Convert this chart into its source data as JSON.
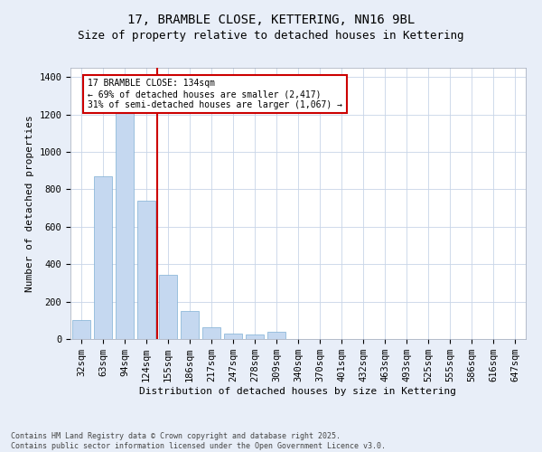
{
  "title1": "17, BRAMBLE CLOSE, KETTERING, NN16 9BL",
  "title2": "Size of property relative to detached houses in Kettering",
  "xlabel": "Distribution of detached houses by size in Kettering",
  "ylabel": "Number of detached properties",
  "categories": [
    "32sqm",
    "63sqm",
    "94sqm",
    "124sqm",
    "155sqm",
    "186sqm",
    "217sqm",
    "247sqm",
    "278sqm",
    "309sqm",
    "340sqm",
    "370sqm",
    "401sqm",
    "432sqm",
    "463sqm",
    "493sqm",
    "525sqm",
    "555sqm",
    "586sqm",
    "616sqm",
    "647sqm"
  ],
  "values": [
    100,
    870,
    1230,
    740,
    345,
    150,
    65,
    30,
    22,
    40,
    0,
    0,
    0,
    0,
    0,
    0,
    0,
    0,
    0,
    0,
    0
  ],
  "bar_color": "#c5d8f0",
  "bar_edgecolor": "#7fafd4",
  "vline_x": 3.5,
  "vline_color": "#cc0000",
  "annotation_text": "17 BRAMBLE CLOSE: 134sqm\n← 69% of detached houses are smaller (2,417)\n31% of semi-detached houses are larger (1,067) →",
  "annotation_box_color": "#cc0000",
  "ylim": [
    0,
    1450
  ],
  "yticks": [
    0,
    200,
    400,
    600,
    800,
    1000,
    1200,
    1400
  ],
  "bg_color": "#e8eef8",
  "plot_bg_color": "#ffffff",
  "footer": "Contains HM Land Registry data © Crown copyright and database right 2025.\nContains public sector information licensed under the Open Government Licence v3.0.",
  "title1_fontsize": 10,
  "title2_fontsize": 9,
  "axis_label_fontsize": 8,
  "tick_fontsize": 7.5,
  "footer_fontsize": 6
}
